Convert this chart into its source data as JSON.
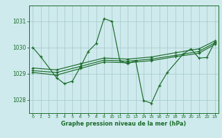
{
  "background_color": "#ceeaec",
  "grid_color": "#aacdd0",
  "line_color": "#1a6b2a",
  "xlabel": "Graphe pression niveau de la mer (hPa)",
  "xlim": [
    -0.5,
    23.5
  ],
  "ylim": [
    1027.5,
    1031.6
  ],
  "yticks": [
    1028,
    1029,
    1030,
    1031
  ],
  "xticks": [
    0,
    1,
    2,
    3,
    4,
    5,
    6,
    7,
    8,
    9,
    10,
    11,
    12,
    13,
    14,
    15,
    16,
    17,
    18,
    19,
    20,
    21,
    22,
    23
  ],
  "series1": {
    "x": [
      0,
      1,
      3,
      4,
      5,
      6,
      7,
      8,
      9,
      10,
      11,
      12,
      13,
      14,
      15,
      16,
      17,
      19,
      20,
      21,
      22,
      23
    ],
    "y": [
      1030.0,
      1029.65,
      1028.85,
      1028.62,
      1028.72,
      1029.25,
      1029.85,
      1030.15,
      1031.1,
      1031.0,
      1029.5,
      1029.38,
      1029.5,
      1027.98,
      1027.88,
      1028.55,
      1029.05,
      1029.75,
      1029.95,
      1029.6,
      1029.62,
      1030.2
    ]
  },
  "series2": {
    "x": [
      0,
      3,
      6,
      9,
      12,
      15,
      18,
      21,
      23
    ],
    "y": [
      1029.05,
      1028.95,
      1029.2,
      1029.45,
      1029.42,
      1029.5,
      1029.65,
      1029.78,
      1030.12
    ]
  },
  "series3": {
    "x": [
      0,
      3,
      6,
      9,
      12,
      15,
      18,
      21,
      23
    ],
    "y": [
      1029.12,
      1029.05,
      1029.28,
      1029.52,
      1029.48,
      1029.56,
      1029.7,
      1029.85,
      1030.18
    ]
  },
  "series4": {
    "x": [
      0,
      3,
      6,
      9,
      12,
      15,
      18,
      21,
      23
    ],
    "y": [
      1029.22,
      1029.15,
      1029.38,
      1029.6,
      1029.56,
      1029.64,
      1029.8,
      1029.95,
      1030.25
    ]
  }
}
